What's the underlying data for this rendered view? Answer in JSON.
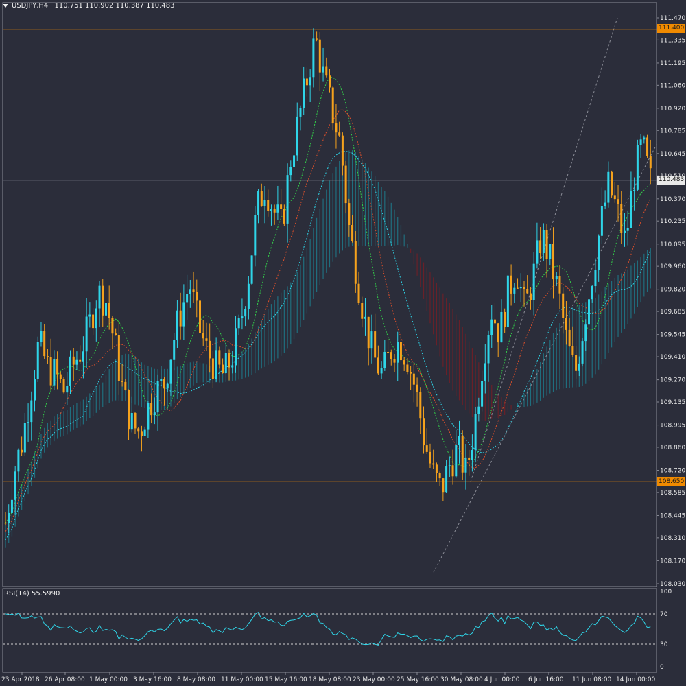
{
  "header": {
    "symbol": "USDJPY,H4",
    "ohlc": "110.751 110.902 110.387 110.483"
  },
  "rsi": {
    "label": "RSI(14) 55.5990",
    "levels": [
      "100",
      "70",
      "30",
      "0"
    ]
  },
  "price_tags": {
    "upper_line": "111.400",
    "current": "110.483",
    "lower_line": "108.650"
  },
  "colors": {
    "background": "#2b2d3a",
    "bull_candle": "#2fd5e8",
    "bear_candle": "#f5a21d",
    "level_line": "#f08a00",
    "kumo_bull": "#1e7f8f",
    "kumo_bear": "#7a1d24",
    "rsi_line": "#2fd5e8"
  },
  "chart_data": {
    "type": "candlestick",
    "symbol": "USDJPY",
    "timeframe": "H4",
    "y_axis_ticks": [
      "111.470",
      "111.335",
      "111.195",
      "111.060",
      "110.920",
      "110.785",
      "110.645",
      "110.510",
      "110.370",
      "110.235",
      "110.095",
      "109.960",
      "109.820",
      "109.685",
      "109.545",
      "109.410",
      "109.270",
      "109.135",
      "108.995",
      "108.860",
      "108.720",
      "108.585",
      "108.445",
      "108.310",
      "108.170",
      "108.030"
    ],
    "ylim": [
      108.03,
      111.47
    ],
    "x_axis_labels": [
      "23 Apr 2018",
      "26 Apr 08:00",
      "1 May 00:00",
      "3 May 16:00",
      "8 May 08:00",
      "11 May 00:00",
      "15 May 16:00",
      "18 May 08:00",
      "23 May 00:00",
      "25 May 16:00",
      "30 May 08:00",
      "4 Jun 00:00",
      "6 Jun 16:00",
      "11 Jun 08:00",
      "14 Jun 00:00"
    ],
    "horizontal_levels": [
      111.4,
      108.65
    ],
    "last_price": 110.483,
    "close_path": [
      108.4,
      108.7,
      108.9,
      109.2,
      109.5,
      109.35,
      109.3,
      109.2,
      109.35,
      109.45,
      109.6,
      109.8,
      109.75,
      109.5,
      109.2,
      109.0,
      108.95,
      109.1,
      109.2,
      109.25,
      109.5,
      109.7,
      109.85,
      109.6,
      109.45,
      109.35,
      109.3,
      109.4,
      109.6,
      109.9,
      110.3,
      110.45,
      110.3,
      110.2,
      110.6,
      110.85,
      111.1,
      111.35,
      111.1,
      110.9,
      110.7,
      110.2,
      109.9,
      109.6,
      109.4,
      109.3,
      109.45,
      109.5,
      109.4,
      109.2,
      108.9,
      108.7,
      108.6,
      108.75,
      108.85,
      108.7,
      109.0,
      109.4,
      109.7,
      109.55,
      109.8,
      109.95,
      109.7,
      109.9,
      110.15,
      110.0,
      109.8,
      109.5,
      109.3,
      109.6,
      109.9,
      110.2,
      110.45,
      110.3,
      110.1,
      110.5,
      110.7,
      110.48
    ],
    "rsi": {
      "period": 14,
      "value": 55.599,
      "levels": [
        70,
        30
      ],
      "ylim": [
        0,
        100
      ]
    }
  }
}
